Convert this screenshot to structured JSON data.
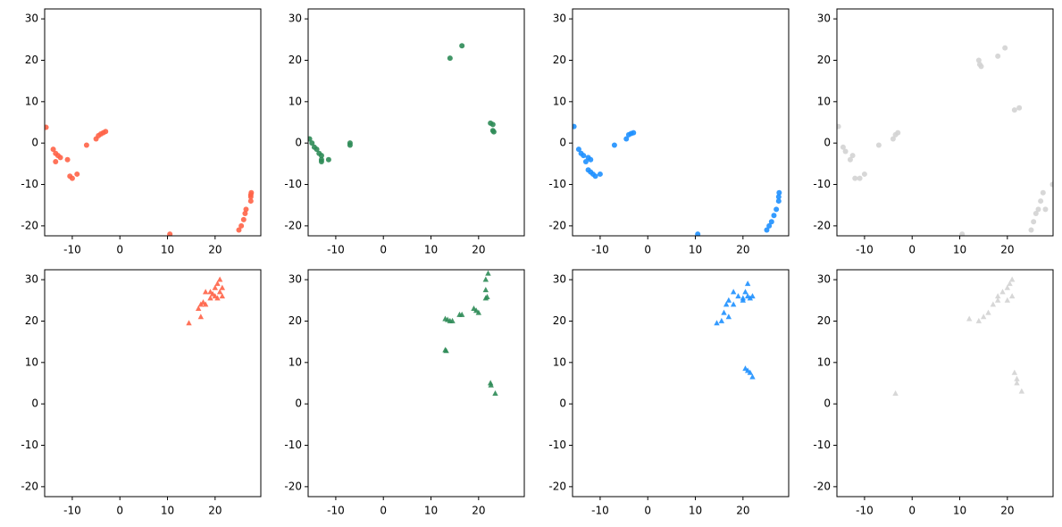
{
  "chart_data": [
    {
      "type": "scatter",
      "marker": "circle",
      "color": "#ff6347",
      "x": [
        -15.5,
        -14,
        -13.5,
        -13,
        -13.5,
        -12.5,
        -11,
        -10.5,
        -10,
        -9,
        -7,
        -5,
        -4.5,
        -4,
        -3.5,
        -3,
        10.5,
        25,
        25.5,
        26,
        26.3,
        26.5,
        27.5,
        27.5,
        27.6,
        27.5
      ],
      "values": [
        3.8,
        -1.5,
        -2.5,
        -3,
        -4.5,
        -3.5,
        -4,
        -8,
        -8.5,
        -7.5,
        -0.5,
        1,
        1.8,
        2.2,
        2.5,
        2.8,
        -22,
        -21,
        -20,
        -18.5,
        -17,
        -16,
        -14,
        -13,
        -12,
        -12.5
      ],
      "xlim": [
        -15.8,
        29.6
      ],
      "ylim": [
        -22.4,
        32.4
      ],
      "xticks": [
        -10,
        0,
        10,
        20
      ],
      "yticks": [
        -20,
        -10,
        0,
        10,
        20,
        30
      ]
    },
    {
      "type": "scatter",
      "marker": "circle",
      "color": "#2e8b57",
      "x": [
        -15.5,
        -15,
        -14.5,
        -14,
        -13.5,
        -13,
        -13,
        -13,
        -11.5,
        -7,
        -7,
        14,
        16.5,
        22.5,
        23,
        23,
        23.2
      ],
      "values": [
        1,
        0,
        -1,
        -1.5,
        -2.5,
        -3,
        -4,
        -4.5,
        -4,
        -0.5,
        0,
        20.5,
        23.5,
        4.8,
        4.5,
        3,
        2.7
      ],
      "xlim": [
        -15.8,
        29.6
      ],
      "ylim": [
        -22.4,
        32.4
      ],
      "xticks": [
        -10,
        0,
        10,
        20
      ],
      "yticks": [
        -20,
        -10,
        0,
        10,
        20,
        30
      ]
    },
    {
      "type": "scatter",
      "marker": "circle",
      "color": "#1e90ff",
      "x": [
        -15.5,
        -14.5,
        -14,
        -13.5,
        -12.5,
        -12,
        -13,
        -12.5,
        -12,
        -11.5,
        -11,
        -10,
        -7,
        -4.5,
        -4,
        -3.5,
        -3,
        10.5,
        25,
        25.5,
        26,
        26.5,
        27,
        27.5,
        27.5,
        27.6
      ],
      "values": [
        4,
        -1.5,
        -2.5,
        -3,
        -3.5,
        -4,
        -4.5,
        -6.5,
        -7,
        -7.5,
        -8,
        -7.5,
        -0.5,
        1,
        2,
        2.3,
        2.5,
        -22,
        -21,
        -20,
        -19,
        -17.5,
        -16,
        -14,
        -13,
        -12
      ],
      "xlim": [
        -15.8,
        29.6
      ],
      "ylim": [
        -22.4,
        32.4
      ],
      "xticks": [
        -10,
        0,
        10,
        20
      ],
      "yticks": [
        -20,
        -10,
        0,
        10,
        20,
        30
      ]
    },
    {
      "type": "scatter",
      "marker": "circle",
      "color": "#d3d3d3",
      "x": [
        -15.5,
        -14.5,
        -14,
        -12.5,
        -12,
        -11,
        -10,
        -13,
        -7,
        -4,
        -3.5,
        -3,
        14,
        14.2,
        14.5,
        18,
        19.5,
        21.5,
        22.5,
        10.5,
        25,
        25.5,
        26,
        26.5,
        27,
        27.5,
        28,
        29.5
      ],
      "values": [
        4,
        -1,
        -2,
        -3,
        -8.5,
        -8.5,
        -7.5,
        -4,
        -0.5,
        1,
        2,
        2.5,
        20,
        19,
        18.5,
        21,
        23,
        8,
        8.5,
        -22,
        -21,
        -19,
        -17,
        -16,
        -14,
        -12,
        -16,
        -10
      ],
      "xlim": [
        -15.8,
        29.6
      ],
      "ylim": [
        -22.4,
        32.4
      ],
      "xticks": [
        -10,
        0,
        10,
        20
      ],
      "yticks": [
        -20,
        -10,
        0,
        10,
        20,
        30
      ]
    },
    {
      "type": "scatter",
      "marker": "triangle",
      "color": "#ff6347",
      "x": [
        14.5,
        16.5,
        17,
        17.5,
        18,
        18,
        19,
        19.5,
        20,
        20,
        20.5,
        21,
        21,
        21.5,
        21.5,
        20.5,
        19,
        17
      ],
      "values": [
        19.5,
        23,
        24,
        24.5,
        24,
        27,
        27,
        26.5,
        28,
        26,
        29,
        30,
        27,
        26,
        28,
        25.5,
        25.5,
        21
      ],
      "xlim": [
        -15.8,
        29.6
      ],
      "ylim": [
        -22.4,
        32.4
      ],
      "xticks": [
        -10,
        0,
        10,
        20
      ],
      "yticks": [
        -20,
        -10,
        0,
        10,
        20,
        30
      ]
    },
    {
      "type": "scatter",
      "marker": "triangle",
      "color": "#2e8b57",
      "x": [
        13,
        13.2,
        13,
        13.5,
        14,
        14.5,
        16,
        16.5,
        19,
        19.5,
        20,
        21.5,
        21.8,
        21.5,
        21.5,
        22,
        22.5,
        22.6,
        23.5
      ],
      "values": [
        13,
        12.8,
        20.5,
        20.3,
        20,
        20,
        21.5,
        21.5,
        23,
        22.5,
        22,
        25.5,
        25.8,
        27.5,
        30,
        31.5,
        5,
        4.5,
        2.5
      ],
      "xlim": [
        -15.8,
        29.6
      ],
      "ylim": [
        -22.4,
        32.4
      ],
      "xticks": [
        -10,
        0,
        10,
        20
      ],
      "yticks": [
        -20,
        -10,
        0,
        10,
        20,
        30
      ]
    },
    {
      "type": "scatter",
      "marker": "triangle",
      "color": "#1e90ff",
      "x": [
        14.5,
        15.5,
        16,
        16.5,
        17,
        18,
        18,
        19,
        20,
        20.5,
        21,
        21,
        21.5,
        22,
        20,
        17,
        20.5,
        21,
        21.5,
        22
      ],
      "values": [
        19.5,
        20,
        22,
        24,
        21,
        24,
        27,
        26,
        25,
        27,
        29,
        26,
        25.5,
        26,
        25.5,
        25,
        8.5,
        8,
        7.5,
        6.5
      ],
      "xlim": [
        -15.8,
        29.6
      ],
      "ylim": [
        -22.4,
        32.4
      ],
      "xticks": [
        -10,
        0,
        10,
        20
      ],
      "yticks": [
        -20,
        -10,
        0,
        10,
        20,
        30
      ]
    },
    {
      "type": "scatter",
      "marker": "triangle",
      "color": "#d3d3d3",
      "x": [
        -3.5,
        12,
        14,
        15,
        16,
        17,
        18,
        19,
        20,
        20.5,
        21,
        21,
        20,
        21.5,
        22,
        22,
        23,
        18
      ],
      "values": [
        2.5,
        20.5,
        20,
        21,
        22,
        24,
        26,
        27,
        28,
        29,
        30,
        26,
        25,
        7.5,
        6,
        5,
        3,
        25
      ],
      "xlim": [
        -15.8,
        29.6
      ],
      "ylim": [
        -22.4,
        32.4
      ],
      "xticks": [
        -10,
        0,
        10,
        20
      ],
      "yticks": [
        -20,
        -10,
        0,
        10,
        20,
        30
      ]
    }
  ]
}
